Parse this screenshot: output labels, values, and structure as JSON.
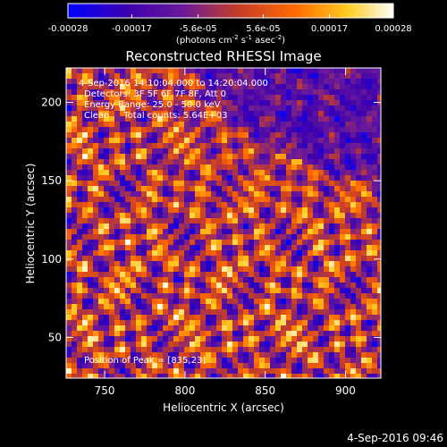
{
  "chart_data": {
    "type": "heatmap",
    "title": "Reconstructed RHESSI Image",
    "xlabel": "Heliocentric X (arcsec)",
    "ylabel": "Heliocentric Y (arcsec)",
    "xlim": [
      726,
      922
    ],
    "ylim": [
      24,
      222
    ],
    "x_ticks": [
      750,
      800,
      850,
      900
    ],
    "y_ticks": [
      50,
      100,
      150,
      200
    ],
    "colorbar": {
      "ticks": [
        -0.00028,
        -0.00017,
        -5.6e-05,
        5.6e-05,
        0.00017,
        0.00028
      ],
      "tick_labels": [
        "-0.00028",
        "-0.00017",
        "-5.6e-05",
        "5.6e-05",
        "0.00017",
        "0.00028"
      ],
      "range": [
        -0.00028,
        0.00028
      ],
      "units_prefix": "(photons cm",
      "units_exp1": "-2",
      "units_mid": " s",
      "units_exp2": "-1",
      "units_mid2": " asec",
      "units_exp3": "-2",
      "units_suffix": ")",
      "colormap": [
        "#0000ff",
        "#3c00b0",
        "#7a1c9a",
        "#c43c2a",
        "#ff6a00",
        "#ffcc20",
        "#ffffff"
      ]
    },
    "annotations": [
      "4-Sep-2016 14:10:04.000 to 14:20:04.000",
      "Detectors: 3F 5F 6F 7F 8F, Att 0",
      "Energy Range: 25.0 - 50.0 keV",
      "Clean     Total counts: 5.64E+03"
    ],
    "peak_label": "Position of Peak = [835,23]",
    "peak_position": [
      835,
      23
    ]
  },
  "footer": {
    "timestamp": "4-Sep-2016 09:46"
  }
}
